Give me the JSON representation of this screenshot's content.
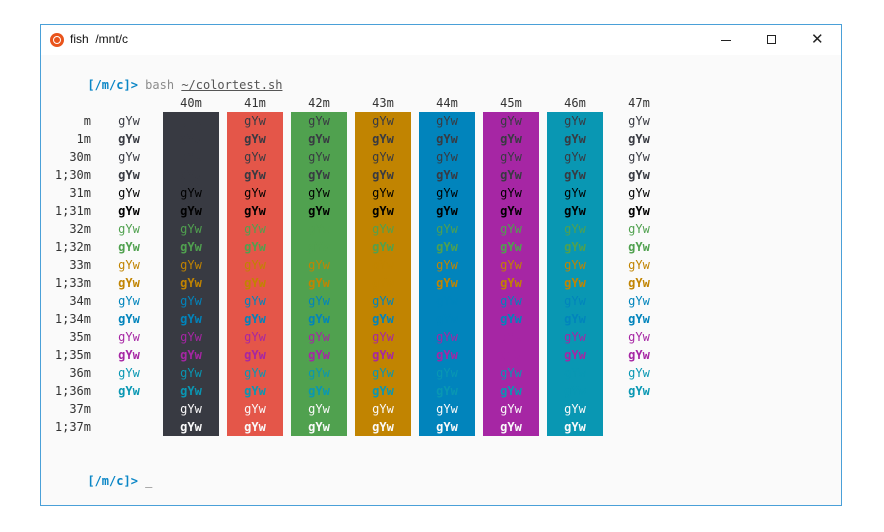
{
  "window": {
    "title": "fish  /mnt/c",
    "icon": "ubuntu-icon",
    "controls": [
      "minimize-icon",
      "maximize-icon",
      "close-icon"
    ]
  },
  "terminal": {
    "line1": {
      "prompt": "[/m/c]>",
      "command": "bash",
      "path": "~/colortest.sh"
    },
    "line2": {
      "prompt": "[/m/c]>",
      "cursor": "_"
    },
    "sample_text": "gYw",
    "headers": [
      "40m",
      "41m",
      "42m",
      "43m",
      "44m",
      "45m",
      "46m",
      "47m"
    ],
    "rows": [
      "m",
      "1m",
      "30m",
      "1;30m",
      "31m",
      "1;31m",
      "32m",
      "1;32m",
      "33m",
      "1;33m",
      "34m",
      "1;34m",
      "35m",
      "1;35m",
      "36m",
      "1;36m",
      "37m",
      "1;37m"
    ],
    "background_colors": [
      "#383a42",
      "#e45649",
      "#50a14f",
      "#c18401",
      "#0184bc",
      "#a626a4",
      "#0997b3",
      "#fafafa"
    ],
    "foreground_colors": {
      "default": "#383a42",
      "30": "#383a42",
      "31": "#e45649",
      "32": "#50a14f",
      "33": "#c18401",
      "34": "#0184bc",
      "35": "#a626a4",
      "36": "#0997b3",
      "37": "#fafafa"
    }
  }
}
